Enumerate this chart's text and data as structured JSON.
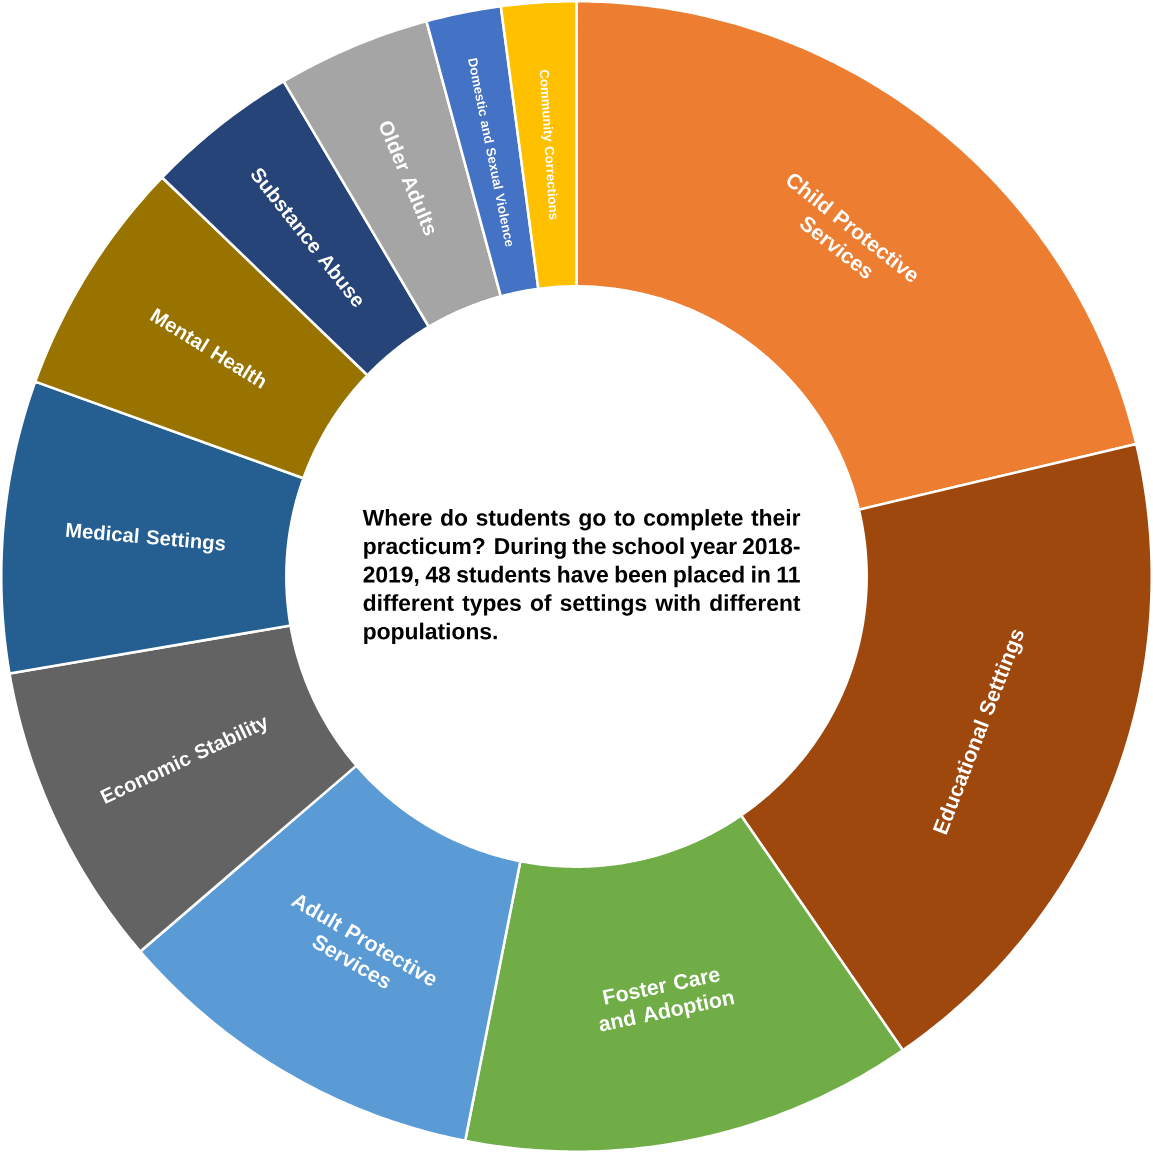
{
  "chart_data": {
    "type": "donut",
    "title": "Where do students go to complete their practicum? During the school year 2018-2019, 48 students have been placed in 11 different types of settings with different populations.",
    "categories": [
      "Child Protective Services",
      "Educational Setttings",
      "Foster Care and Adoption",
      "Adult Protective Services",
      "Economic Stability",
      "Medical Settings",
      "Mental Health",
      "Substance Abuse",
      "Older Adults",
      "Domestic and Sexual Violence",
      "Community Corrections"
    ],
    "values": [
      21.3,
      19.1,
      12.7,
      10.6,
      8.6,
      8.2,
      6.7,
      4.3,
      4.3,
      2.1,
      2.1
    ],
    "colors": [
      "#ed7d31",
      "#9e480e",
      "#70ad47",
      "#5b9bd5",
      "#636363",
      "#255e91",
      "#997300",
      "#264478",
      "#a5a5a5",
      "#4472c4",
      "#ffc000"
    ]
  }
}
